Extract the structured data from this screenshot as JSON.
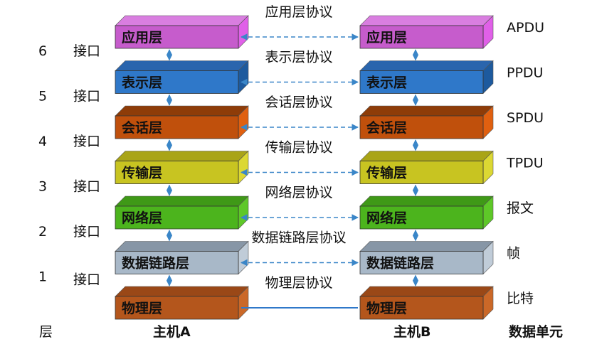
{
  "hosts": {
    "host_a": "主机A",
    "host_b": "主机B"
  },
  "column_headers": {
    "layer": "层",
    "data_unit": "数据单元"
  },
  "layers": [
    {
      "name": "应用层",
      "protocol": "应用层协议",
      "unit": "APDU",
      "front": "#c65ccc",
      "top": "#d97ee0",
      "side": "#e060e8",
      "link": "dashed"
    },
    {
      "name": "表示层",
      "protocol": "表示层协议",
      "unit": "PPDU",
      "front": "#2f78c9",
      "top": "#2a65ad",
      "side": "#1d5a9e",
      "link": "dashed"
    },
    {
      "name": "会话层",
      "protocol": "会话层协议",
      "unit": "SPDU",
      "front": "#c0500c",
      "top": "#8e3c08",
      "side": "#e06010",
      "link": "dashed"
    },
    {
      "name": "传输层",
      "protocol": "传输层协议",
      "unit": "TPDU",
      "front": "#c8c421",
      "top": "#a9a417",
      "side": "#dcd833",
      "link": "dashed"
    },
    {
      "name": "网络层",
      "protocol": "网络层协议",
      "unit": "报文",
      "front": "#4cb41d",
      "top": "#3f9917",
      "side": "#5ec828",
      "link": "dashed"
    },
    {
      "name": "数据链路层",
      "protocol": "数据链路层协议",
      "unit": "帧",
      "front": "#a8b8c8",
      "top": "#8796a6",
      "side": "#c0ccd8",
      "link": "dashed"
    },
    {
      "name": "物理层",
      "protocol": "物理层协议",
      "unit": "比特",
      "front": "#b4561c",
      "top": "#9a4817",
      "side": "#cb6828",
      "link": "solid"
    }
  ],
  "interfaces": [
    {
      "num": "6",
      "label": "接口"
    },
    {
      "num": "5",
      "label": "接口"
    },
    {
      "num": "4",
      "label": "接口"
    },
    {
      "num": "3",
      "label": "接口"
    },
    {
      "num": "2",
      "label": "接口"
    },
    {
      "num": "1",
      "label": "接口"
    }
  ],
  "colors": {
    "dashed_link": "#3a86c8",
    "solid_link": "#2f78c9",
    "vertical_arrow": "#2f78c9"
  }
}
